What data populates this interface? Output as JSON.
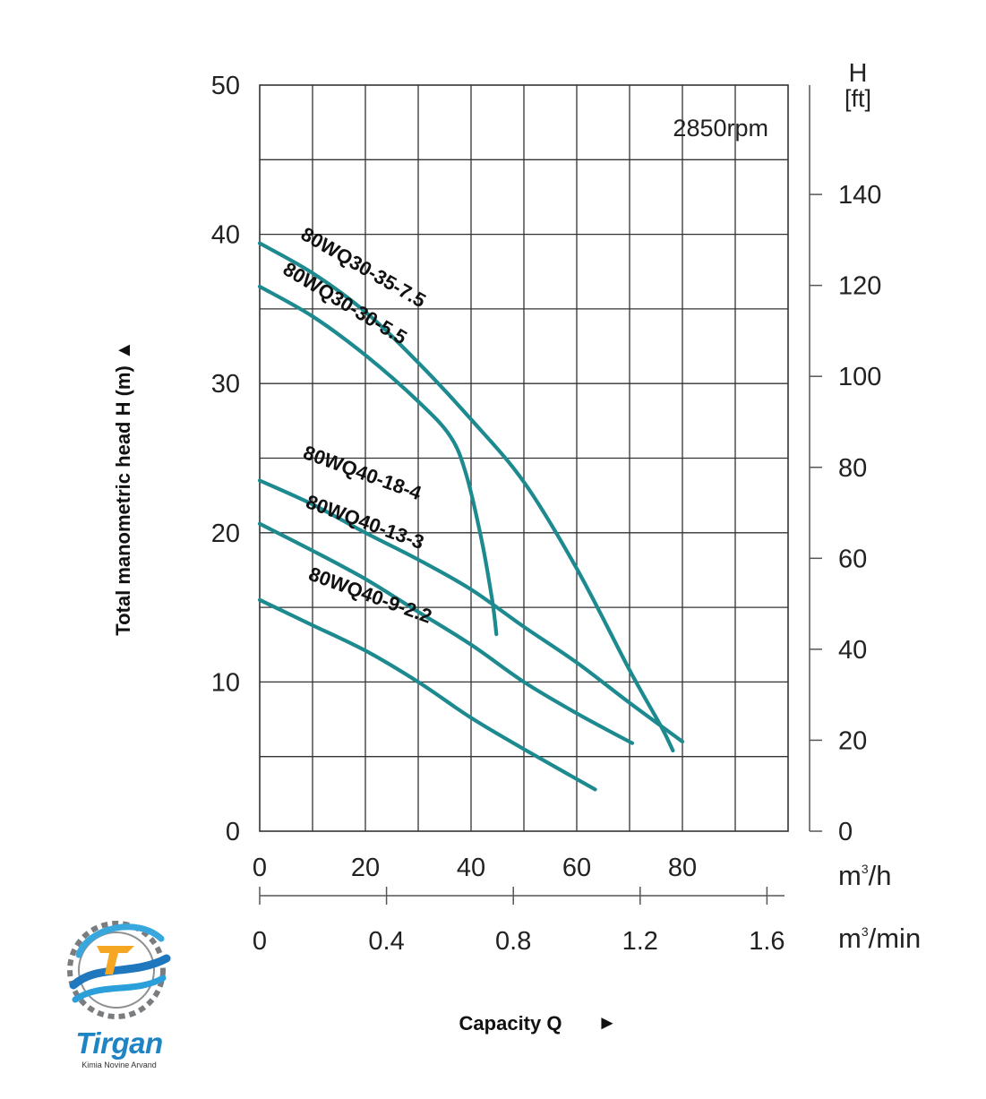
{
  "chart_data": {
    "type": "line",
    "speed_label": "2850rpm",
    "ylabel": "Total manometric head H (m)",
    "ylabel_arrow": "▲",
    "xlabel": "Capacity Q",
    "xlabel_arrow": "►",
    "right_axis_label": "H",
    "right_axis_unit": "[ft]",
    "x_unit_primary": "m",
    "x_unit_primary_sup": "3",
    "x_unit_primary_suffix": "/h",
    "x_unit_secondary": "m",
    "x_unit_secondary_sup": "3",
    "x_unit_secondary_suffix": "/min",
    "xlim": [
      0,
      100
    ],
    "ylim": [
      0,
      50
    ],
    "x_ticks": [
      "0",
      "20",
      "40",
      "60",
      "80"
    ],
    "x_tick_values": [
      0,
      20,
      40,
      60,
      80
    ],
    "x_ticks_secondary": [
      "0",
      "0.4",
      "0.8",
      "1.2",
      "1.6"
    ],
    "x_ticks_secondary_values": [
      0,
      0.4,
      0.8,
      1.2,
      1.6
    ],
    "y_ticks": [
      "0",
      "10",
      "20",
      "30",
      "40",
      "50"
    ],
    "y_tick_values": [
      0,
      10,
      20,
      30,
      40,
      50
    ],
    "y_ticks_right": [
      "0",
      "20",
      "40",
      "60",
      "80",
      "100",
      "120",
      "140"
    ],
    "y_ticks_right_values": [
      0,
      20,
      40,
      60,
      80,
      100,
      120,
      140
    ],
    "grid": true,
    "line_color": "#1c8a8f",
    "series": [
      {
        "name": "80WQ30-35-7.5",
        "points": [
          [
            0,
            39.4
          ],
          [
            10,
            37.4
          ],
          [
            20,
            34.8
          ],
          [
            30,
            31.4
          ],
          [
            40,
            27.6
          ],
          [
            50,
            23.4
          ],
          [
            60,
            17.6
          ],
          [
            70,
            10.8
          ],
          [
            76,
            7.0
          ],
          [
            78.2,
            5.4
          ]
        ]
      },
      {
        "name": "80WQ30-30-5.5",
        "points": [
          [
            0,
            36.5
          ],
          [
            10,
            34.5
          ],
          [
            20,
            31.9
          ],
          [
            30,
            28.8
          ],
          [
            36,
            26.5
          ],
          [
            39,
            24.0
          ],
          [
            42,
            19.5
          ],
          [
            44,
            15.5
          ],
          [
            44.8,
            13.2
          ]
        ]
      },
      {
        "name": "80WQ40-18-4",
        "points": [
          [
            0,
            23.5
          ],
          [
            10,
            21.9
          ],
          [
            20,
            20.0
          ],
          [
            30,
            18.2
          ],
          [
            40,
            16.2
          ],
          [
            50,
            13.7
          ],
          [
            60,
            11.3
          ],
          [
            70,
            8.6
          ],
          [
            80,
            6.0
          ]
        ]
      },
      {
        "name": "80WQ40-13-3",
        "points": [
          [
            0,
            20.6
          ],
          [
            10,
            18.8
          ],
          [
            20,
            16.9
          ],
          [
            30,
            14.7
          ],
          [
            40,
            12.5
          ],
          [
            50,
            10.0
          ],
          [
            60,
            7.9
          ],
          [
            70.5,
            5.9
          ]
        ]
      },
      {
        "name": "80WQ40-9-2.2",
        "points": [
          [
            0,
            15.5
          ],
          [
            10,
            13.8
          ],
          [
            20,
            12.1
          ],
          [
            30,
            10.0
          ],
          [
            40,
            7.6
          ],
          [
            50,
            5.5
          ],
          [
            63.5,
            2.8
          ]
        ]
      }
    ]
  },
  "logo": {
    "word": "Tirgan",
    "subtitle": "Kimia Novine Arvand"
  }
}
